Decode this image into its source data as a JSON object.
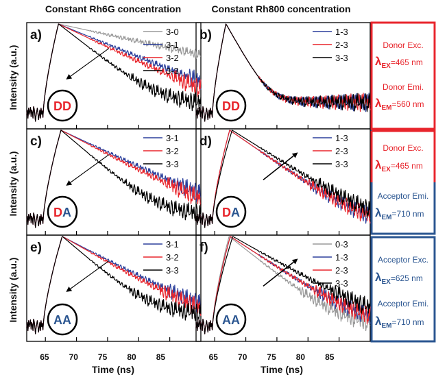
{
  "colors": {
    "gray": "#9a9a9a",
    "blue": "#2b3f9c",
    "red": "#e8252c",
    "black": "#000000",
    "donor": "#e8252c",
    "acceptor": "#2a5590"
  },
  "column_titles": [
    "Constant Rh6G concentration",
    "Constant Rh800 concentration"
  ],
  "ylabel": "Intensity (a.u.)",
  "xlabel": "Time (ns)",
  "xticks": [
    "65",
    "70",
    "75",
    "80",
    "85"
  ],
  "panel_letters": [
    "a)",
    "b)",
    "c)",
    "d)",
    "e)",
    "f)"
  ],
  "badges": {
    "dd": [
      "D",
      "D"
    ],
    "da": [
      "D",
      "A"
    ],
    "aa": [
      "A",
      "A"
    ]
  },
  "info": {
    "donor_exc": "Donor Exc.",
    "donor_emi": "Donor Emi.",
    "acceptor_exc": "Acceptor Exc.",
    "acceptor_emi": "Acceptor Emi.",
    "lambda": "λ",
    "sub_ex": "EX",
    "sub_em": "EM",
    "val_465": "=465 nm",
    "val_560": "=560 nm",
    "val_710": "=710 nm",
    "val_625": "=625 nm"
  },
  "chart_data": [
    {
      "panel": "a)",
      "type": "line",
      "xlim": [
        62,
        90
      ],
      "xticks": [
        65,
        70,
        75,
        80,
        85
      ],
      "log_y": true,
      "series": [
        {
          "name": "3-0",
          "color": "gray",
          "peak": 67.1,
          "tau": 13.0,
          "floor": 0.004
        },
        {
          "name": "3-1",
          "color": "blue",
          "peak": 67.1,
          "tau": 6.8,
          "floor": 0.004
        },
        {
          "name": "3-2",
          "color": "red",
          "peak": 67.1,
          "tau": 6.0,
          "floor": 0.004
        },
        {
          "name": "3-3",
          "color": "black",
          "peak": 67.1,
          "tau": 3.6,
          "floor": 0.01
        }
      ],
      "trend": "decrease"
    },
    {
      "panel": "b)",
      "type": "line",
      "xlim": [
        62,
        90
      ],
      "xticks": [
        65,
        70,
        75,
        80,
        85
      ],
      "log_y": true,
      "series": [
        {
          "name": "1-3",
          "color": "blue",
          "peak": 66.8,
          "tau": 1.6,
          "floor": 0.012
        },
        {
          "name": "2-3",
          "color": "red",
          "peak": 66.8,
          "tau": 1.6,
          "floor": 0.012
        },
        {
          "name": "3-3",
          "color": "black",
          "peak": 66.8,
          "tau": 1.6,
          "floor": 0.012
        }
      ],
      "trend": "none"
    },
    {
      "panel": "c)",
      "type": "line",
      "xlim": [
        62,
        90
      ],
      "xticks": [
        65,
        70,
        75,
        80,
        85
      ],
      "log_y": true,
      "series": [
        {
          "name": "3-1",
          "color": "blue",
          "peak": 67.5,
          "tau": 6.0,
          "floor": 0.004
        },
        {
          "name": "3-2",
          "color": "red",
          "peak": 67.5,
          "tau": 5.5,
          "floor": 0.004
        },
        {
          "name": "3-3",
          "color": "black",
          "peak": 67.5,
          "tau": 3.3,
          "floor": 0.008
        }
      ],
      "trend": "decrease"
    },
    {
      "panel": "d)",
      "type": "line",
      "xlim": [
        62,
        90
      ],
      "xticks": [
        65,
        70,
        75,
        80,
        85
      ],
      "log_y": true,
      "series": [
        {
          "name": "1-3",
          "color": "blue",
          "peak": 67.4,
          "tau": 4.1,
          "floor": 0.004
        },
        {
          "name": "2-3",
          "color": "red",
          "peak": 67.4,
          "tau": 4.1,
          "floor": 0.004
        },
        {
          "name": "3-3",
          "color": "black",
          "peak": 67.8,
          "tau": 4.5,
          "floor": 0.004
        }
      ],
      "trend": "increase"
    },
    {
      "panel": "e)",
      "type": "line",
      "xlim": [
        62,
        90
      ],
      "xticks": [
        65,
        70,
        75,
        80,
        85
      ],
      "log_y": true,
      "series": [
        {
          "name": "3-1",
          "color": "blue",
          "peak": 67.7,
          "tau": 5.4,
          "floor": 0.006
        },
        {
          "name": "3-2",
          "color": "red",
          "peak": 67.7,
          "tau": 5.0,
          "floor": 0.006
        },
        {
          "name": "3-3",
          "color": "black",
          "peak": 67.7,
          "tau": 3.3,
          "floor": 0.012
        }
      ],
      "trend": "decrease"
    },
    {
      "panel": "f)",
      "type": "line",
      "xlim": [
        62,
        90
      ],
      "xticks": [
        65,
        70,
        75,
        80,
        85
      ],
      "log_y": true,
      "series": [
        {
          "name": "0-3",
          "color": "gray",
          "peak": 67.3,
          "tau": 3.6,
          "floor": 0.006
        },
        {
          "name": "1-3",
          "color": "blue",
          "peak": 67.5,
          "tau": 4.3,
          "floor": 0.006
        },
        {
          "name": "2-3",
          "color": "red",
          "peak": 67.5,
          "tau": 4.3,
          "floor": 0.006
        },
        {
          "name": "3-3",
          "color": "black",
          "peak": 67.9,
          "tau": 5.0,
          "floor": 0.006
        }
      ],
      "trend": "increase"
    }
  ]
}
